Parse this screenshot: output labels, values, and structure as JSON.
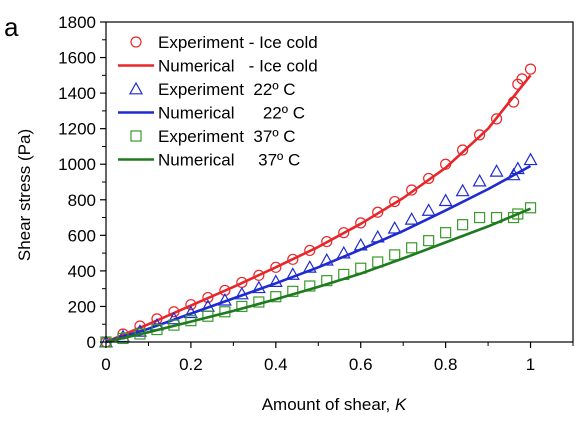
{
  "panel_label": "a",
  "chart_data": {
    "type": "scatter",
    "xlabel_main": "Amount of shear, ",
    "xlabel_italic": "K",
    "ylabel": "Shear stress (Pa)",
    "xlim": [
      0,
      1.1
    ],
    "ylim": [
      0,
      1800
    ],
    "x_ticks": [
      0,
      0.2,
      0.4,
      0.6,
      0.8,
      1
    ],
    "x_tick_labels": [
      "0",
      "0.2",
      "0.4",
      "0.6",
      "0.8",
      "1"
    ],
    "y_ticks": [
      0,
      200,
      400,
      600,
      800,
      1000,
      1200,
      1400,
      1600,
      1800
    ],
    "y_tick_labels": [
      "0",
      "200",
      "400",
      "600",
      "800",
      "1000",
      "1200",
      "1400",
      "1600",
      "1800"
    ],
    "grid": false,
    "legend_position": "top-left",
    "legend": [
      {
        "label": "Experiment - Ice cold",
        "marker": "circle",
        "color": "#e8262a"
      },
      {
        "label": "Numerical   - Ice cold",
        "marker": "line",
        "color": "#e8262a"
      },
      {
        "label": "Experiment  22º C",
        "marker": "triangle",
        "color": "#1f2bd0"
      },
      {
        "label": "Numerical      22º C",
        "marker": "line",
        "color": "#1f2bd0"
      },
      {
        "label": "Experiment  37º C",
        "marker": "square",
        "color": "#3a9a2a"
      },
      {
        "label": "Numerical     37º C",
        "marker": "line",
        "color": "#1e7a1e"
      }
    ],
    "series": [
      {
        "name": "Experiment - Ice cold",
        "kind": "markers",
        "marker": "circle",
        "color": "#e8262a",
        "x": [
          0,
          0.04,
          0.08,
          0.12,
          0.16,
          0.2,
          0.24,
          0.28,
          0.32,
          0.36,
          0.4,
          0.44,
          0.48,
          0.52,
          0.56,
          0.6,
          0.64,
          0.68,
          0.72,
          0.76,
          0.8,
          0.84,
          0.88,
          0.92,
          0.96,
          0.97,
          0.98,
          1.0
        ],
        "y": [
          0,
          45,
          90,
          130,
          170,
          210,
          250,
          290,
          335,
          375,
          420,
          465,
          515,
          565,
          615,
          670,
          730,
          790,
          855,
          920,
          1000,
          1080,
          1165,
          1255,
          1350,
          1450,
          1480,
          1535
        ]
      },
      {
        "name": "Numerical   - Ice cold",
        "kind": "line",
        "color": "#e8262a",
        "x": [
          0,
          0.1,
          0.2,
          0.3,
          0.4,
          0.5,
          0.6,
          0.7,
          0.8,
          0.9,
          1.0
        ],
        "y": [
          0,
          100,
          205,
          310,
          420,
          535,
          665,
          810,
          980,
          1200,
          1500
        ]
      },
      {
        "name": "Experiment  22º C",
        "kind": "markers",
        "marker": "triangle",
        "color": "#1f2bd0",
        "x": [
          0,
          0.04,
          0.08,
          0.12,
          0.16,
          0.2,
          0.24,
          0.28,
          0.32,
          0.36,
          0.4,
          0.44,
          0.48,
          0.52,
          0.56,
          0.6,
          0.64,
          0.68,
          0.72,
          0.76,
          0.8,
          0.84,
          0.88,
          0.92,
          0.96,
          0.97,
          1.0
        ],
        "y": [
          0,
          30,
          60,
          95,
          130,
          165,
          200,
          235,
          270,
          305,
          340,
          380,
          420,
          460,
          500,
          545,
          590,
          640,
          690,
          740,
          795,
          850,
          905,
          960,
          940,
          975,
          1025
        ]
      },
      {
        "name": "Numerical      22º C",
        "kind": "line",
        "color": "#1f2bd0",
        "x": [
          0,
          0.1,
          0.2,
          0.3,
          0.4,
          0.5,
          0.6,
          0.7,
          0.8,
          0.9,
          1.0
        ],
        "y": [
          0,
          75,
          160,
          245,
          330,
          420,
          520,
          625,
          740,
          860,
          990
        ]
      },
      {
        "name": "Experiment  37º C",
        "kind": "markers",
        "marker": "square",
        "color": "#3a9a2a",
        "x": [
          0,
          0.04,
          0.08,
          0.12,
          0.16,
          0.2,
          0.24,
          0.28,
          0.32,
          0.36,
          0.4,
          0.44,
          0.48,
          0.52,
          0.56,
          0.6,
          0.64,
          0.68,
          0.72,
          0.76,
          0.8,
          0.84,
          0.88,
          0.92,
          0.96,
          0.97,
          1.0
        ],
        "y": [
          0,
          20,
          45,
          70,
          95,
          120,
          145,
          170,
          200,
          225,
          255,
          285,
          315,
          345,
          380,
          415,
          450,
          490,
          530,
          570,
          615,
          660,
          700,
          700,
          700,
          720,
          755
        ]
      },
      {
        "name": "Numerical     37º C",
        "kind": "line",
        "color": "#1e7a1e",
        "x": [
          0,
          0.1,
          0.2,
          0.3,
          0.4,
          0.5,
          0.6,
          0.7,
          0.8,
          0.9,
          1.0
        ],
        "y": [
          0,
          55,
          115,
          175,
          240,
          310,
          385,
          470,
          560,
          650,
          750
        ]
      }
    ]
  }
}
